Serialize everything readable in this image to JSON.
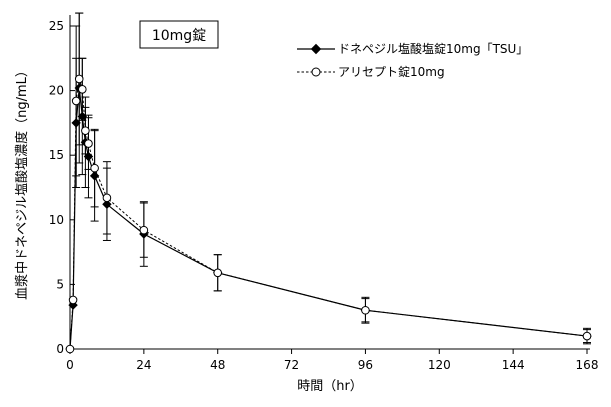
{
  "chart_data": {
    "type": "line",
    "annotation": "10mg錠",
    "xlabel": "時間（hr）",
    "ylabel": "血漿中ドネペジル塩酸塩濃度（ng/mL）",
    "xlim": [
      0,
      168
    ],
    "ylim": [
      0,
      25
    ],
    "xticks": [
      0,
      24,
      48,
      72,
      96,
      120,
      144,
      168
    ],
    "yticks": [
      0,
      5,
      10,
      15,
      20,
      25
    ],
    "grid": false,
    "legend_position": "top-right",
    "series": [
      {
        "name": "ドネペジル塩酸塩錠10mg「TSU」",
        "marker": "filled-diamond",
        "line": "solid",
        "x": [
          0,
          1,
          2,
          3,
          4,
          5,
          6,
          8,
          12,
          24,
          48,
          96,
          168
        ],
        "y": [
          0,
          3.4,
          17.5,
          20.2,
          18.0,
          16.0,
          14.9,
          13.4,
          11.2,
          8.9,
          5.9,
          3.0,
          1.0
        ],
        "error": [
          0,
          0,
          5.0,
          5.8,
          4.5,
          3.5,
          3.2,
          3.5,
          2.8,
          2.5,
          1.4,
          0.9,
          0.5
        ]
      },
      {
        "name": "アリセプト錠10mg",
        "marker": "open-circle",
        "line": "dotted",
        "x": [
          0,
          1,
          2,
          3,
          4,
          5,
          6,
          8,
          12,
          24,
          48,
          96,
          168
        ],
        "y": [
          0,
          3.8,
          19.2,
          20.9,
          20.1,
          16.9,
          15.9,
          14.0,
          11.7,
          9.2,
          5.9,
          3.0,
          1.0
        ],
        "error": [
          0,
          0,
          5.8,
          5.1,
          2.4,
          1.8,
          2.0,
          3.0,
          2.8,
          2.1,
          1.4,
          1.0,
          0.6
        ]
      }
    ]
  }
}
